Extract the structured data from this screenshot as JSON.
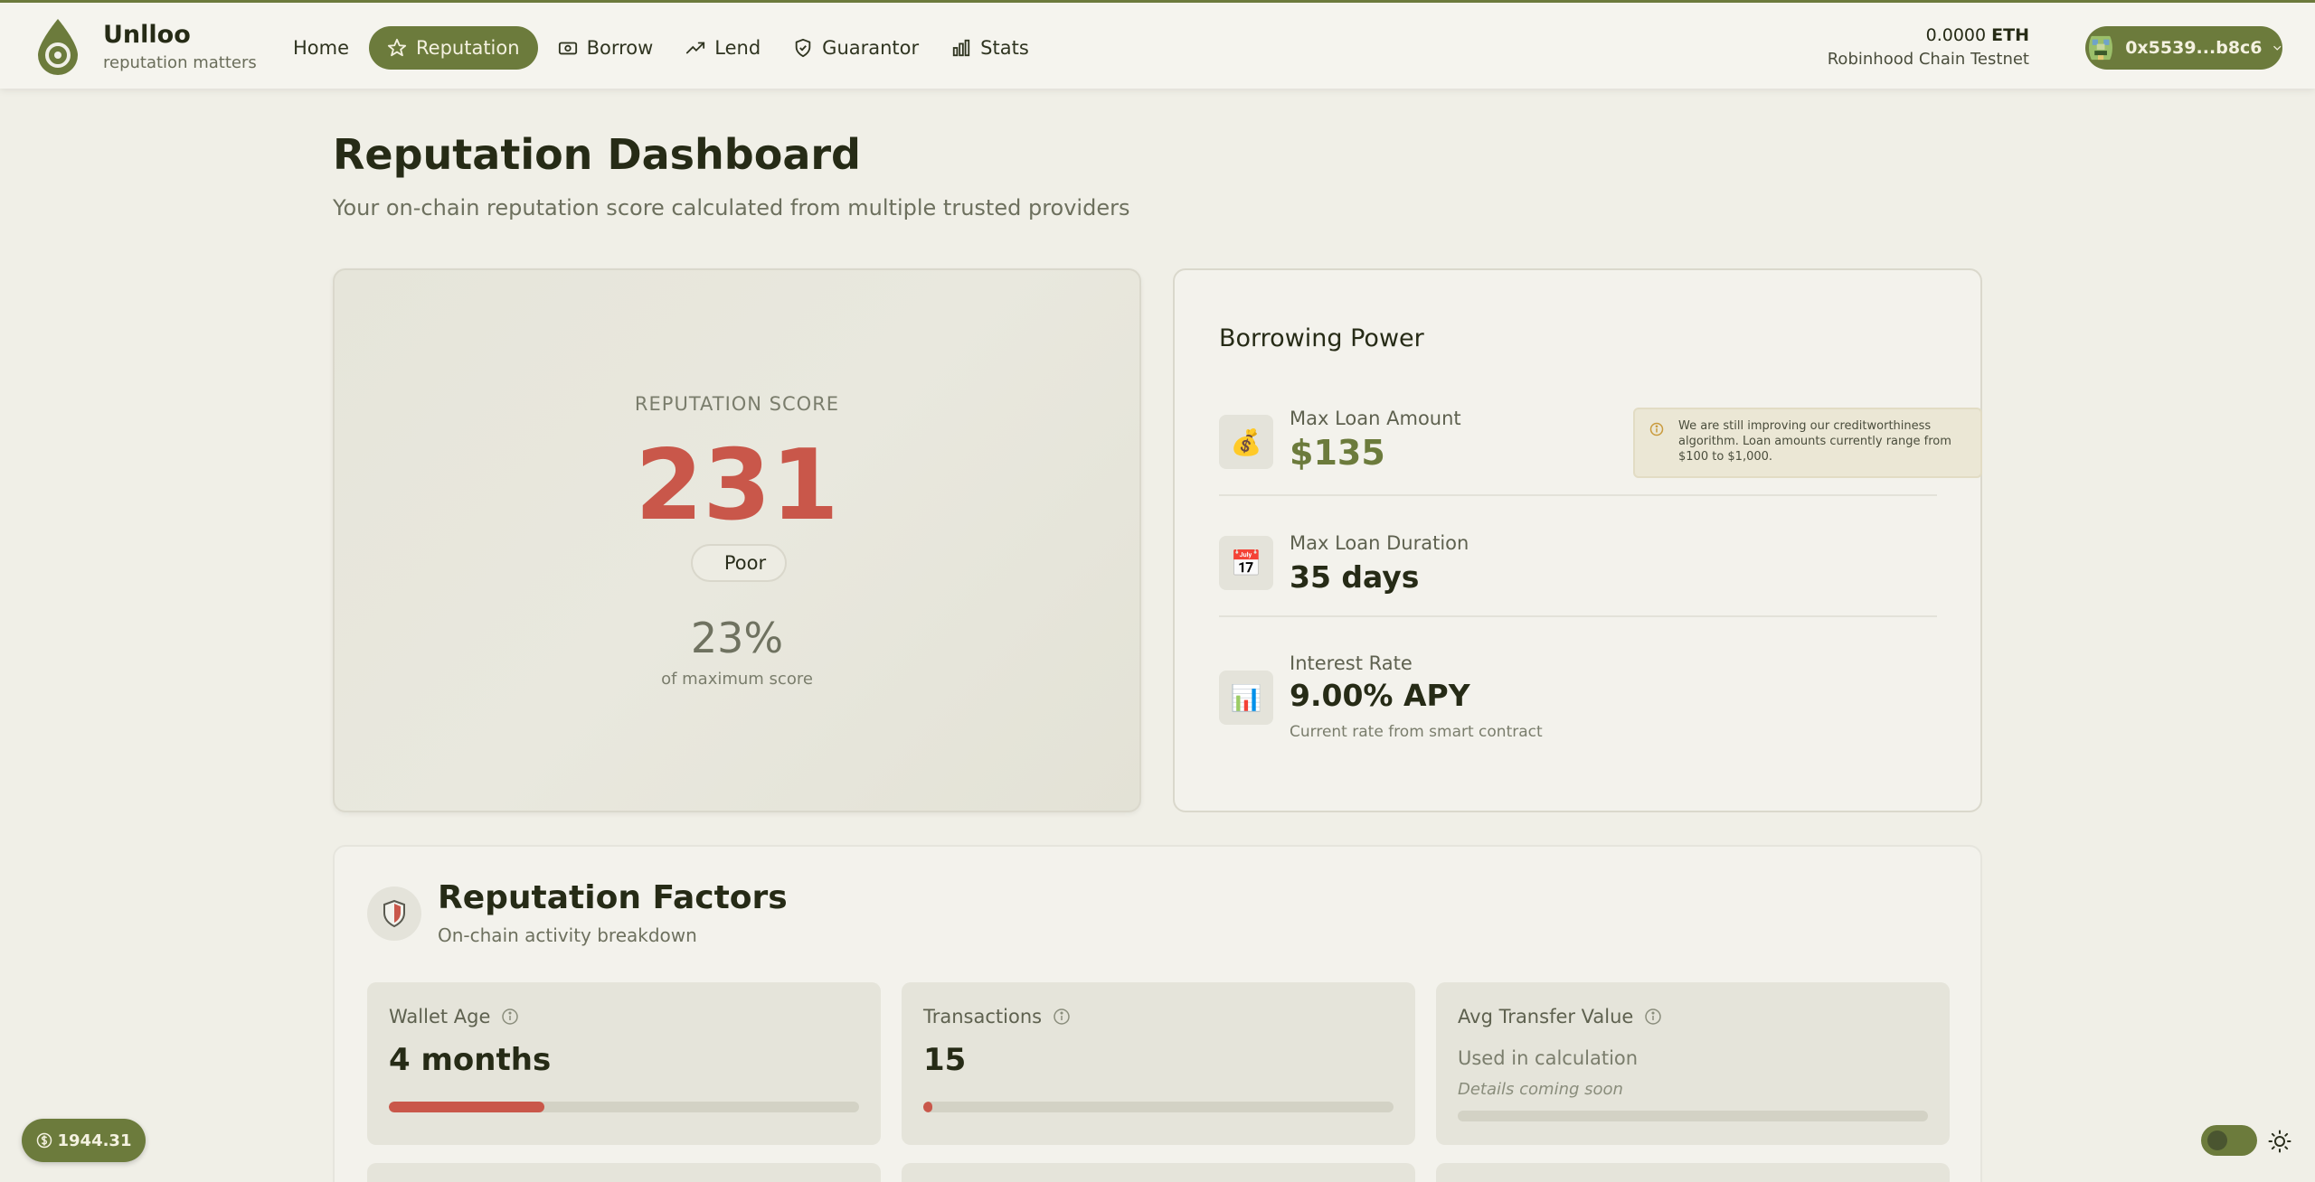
{
  "brand": {
    "name": "Unlloo",
    "tagline": "reputation matters"
  },
  "nav": {
    "items": [
      {
        "label": "Home",
        "icon": "none"
      },
      {
        "label": "Reputation",
        "icon": "star-icon",
        "active": true
      },
      {
        "label": "Borrow",
        "icon": "banknote-icon"
      },
      {
        "label": "Lend",
        "icon": "trending-up-icon"
      },
      {
        "label": "Guarantor",
        "icon": "shield-check-icon"
      },
      {
        "label": "Stats",
        "icon": "bar-chart-icon"
      }
    ]
  },
  "account": {
    "balance_amount": "0.0000",
    "balance_unit": "ETH",
    "network": "Robinhood Chain Testnet",
    "address": "0x5539...b8c6"
  },
  "page": {
    "title": "Reputation Dashboard",
    "subtitle": "Your on-chain reputation score calculated from multiple trusted providers"
  },
  "score": {
    "label": "REPUTATION SCORE",
    "value": "231",
    "rating": "Poor",
    "percent_text": "23%",
    "percent_value": 23,
    "percent_label": "of maximum score"
  },
  "borrowing": {
    "title": "Borrowing Power",
    "max_loan_label": "Max Loan Amount",
    "max_loan_value": "$135",
    "max_loan_icon": "money-bag-icon",
    "info_note": "We are still improving our creditworthiness algorithm. Loan amounts currently range from $100 to $1,000.",
    "duration_label": "Max Loan Duration",
    "duration_value": "35 days",
    "duration_icon": "calendar-icon",
    "rate_label": "Interest Rate",
    "rate_value": "9.00% APY",
    "rate_note": "Current rate from smart contract",
    "rate_icon": "bar-chart-icon"
  },
  "factors": {
    "title": "Reputation Factors",
    "subtitle": "On-chain activity breakdown",
    "tiles": [
      {
        "label": "Wallet Age",
        "value": "4 months",
        "progress": 0.33
      },
      {
        "label": "Transactions",
        "value": "15",
        "progress": 0.02
      },
      {
        "label": "Avg Transfer Value",
        "status": "Used in calculation",
        "note": "Details coming soon",
        "progress": 0
      }
    ]
  },
  "price_pill": {
    "value": "1944.31"
  },
  "colors": {
    "accent": "#6c7b3c",
    "score_poor": "#c9574a",
    "background": "#f0efe7"
  }
}
